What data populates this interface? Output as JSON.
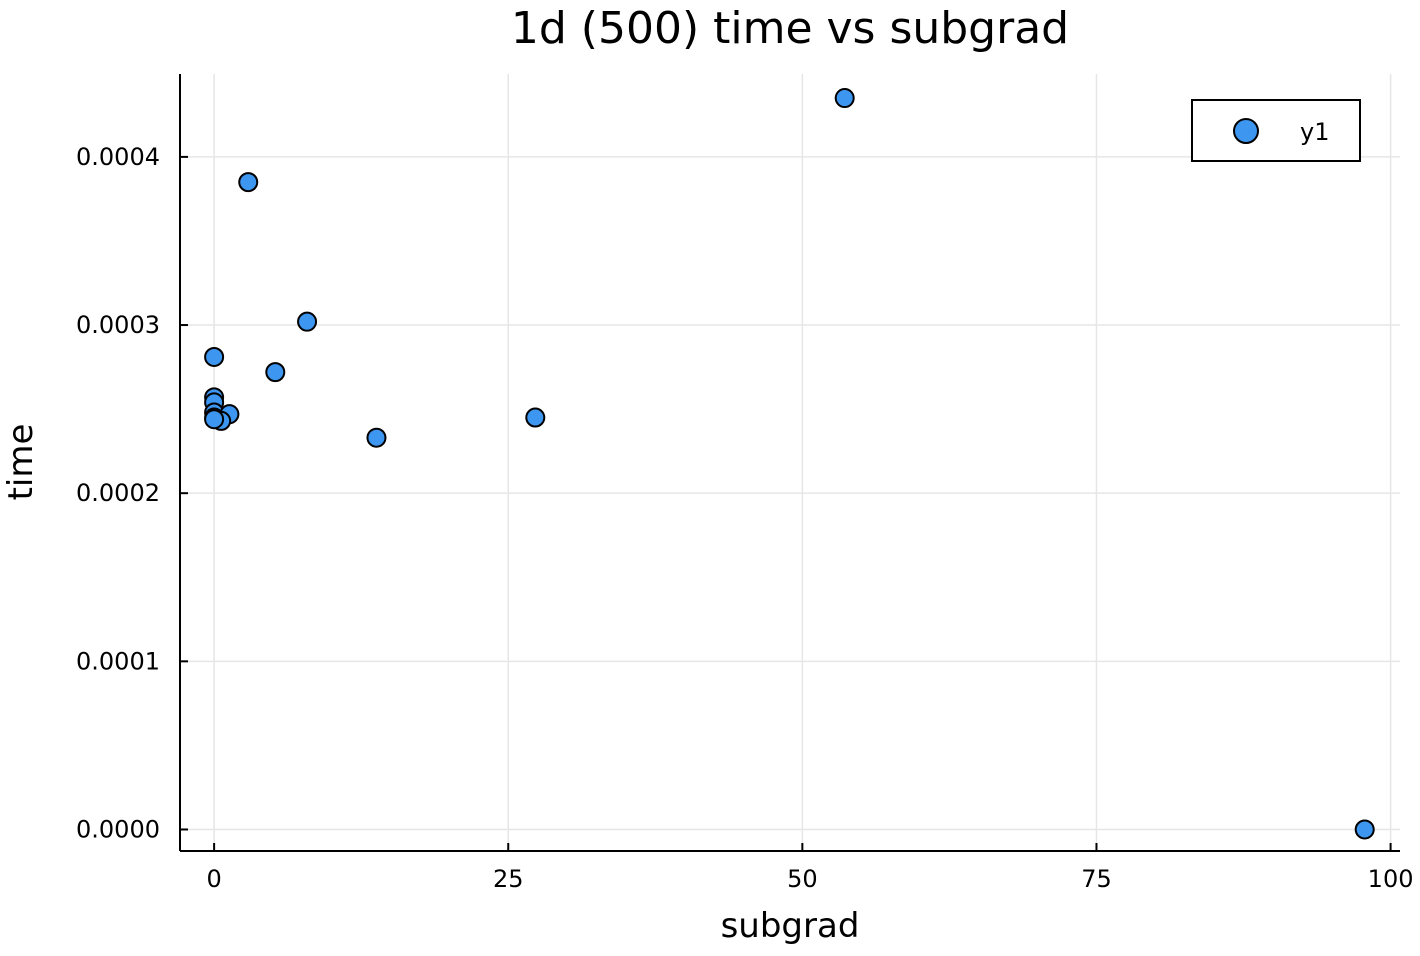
{
  "chart_data": {
    "type": "scatter",
    "title": "1d (500) time vs subgrad",
    "xlabel": "subgrad",
    "ylabel": "time",
    "xlim": [
      -2.9,
      100.8
    ],
    "ylim": [
      -1.28e-05,
      0.0004493
    ],
    "xticks": [
      0,
      25,
      50,
      75,
      100
    ],
    "xtick_labels": [
      "0",
      "25",
      "50",
      "75",
      "100"
    ],
    "yticks": [
      0.0,
      0.0001,
      0.0002,
      0.0003,
      0.0004
    ],
    "ytick_labels": [
      "0.0000",
      "0.0001",
      "0.0002",
      "0.0003",
      "0.0004"
    ],
    "grid": true,
    "legend": {
      "position": "top-right",
      "entries": [
        "y1"
      ]
    },
    "series": [
      {
        "name": "y1",
        "color": "#3d96f0",
        "x": [
          53.6,
          2.9,
          7.9,
          0.0,
          5.2,
          0.0,
          0.0,
          0.0,
          0.0,
          1.3,
          0.6,
          27.3,
          13.8,
          0.0,
          97.8
        ],
        "y": [
          0.000435,
          0.000385,
          0.000302,
          0.000281,
          0.000272,
          0.000257,
          0.000254,
          0.000248,
          0.000245,
          0.000247,
          0.000243,
          0.000245,
          0.000233,
          0.000244,
          0.0
        ]
      }
    ]
  }
}
